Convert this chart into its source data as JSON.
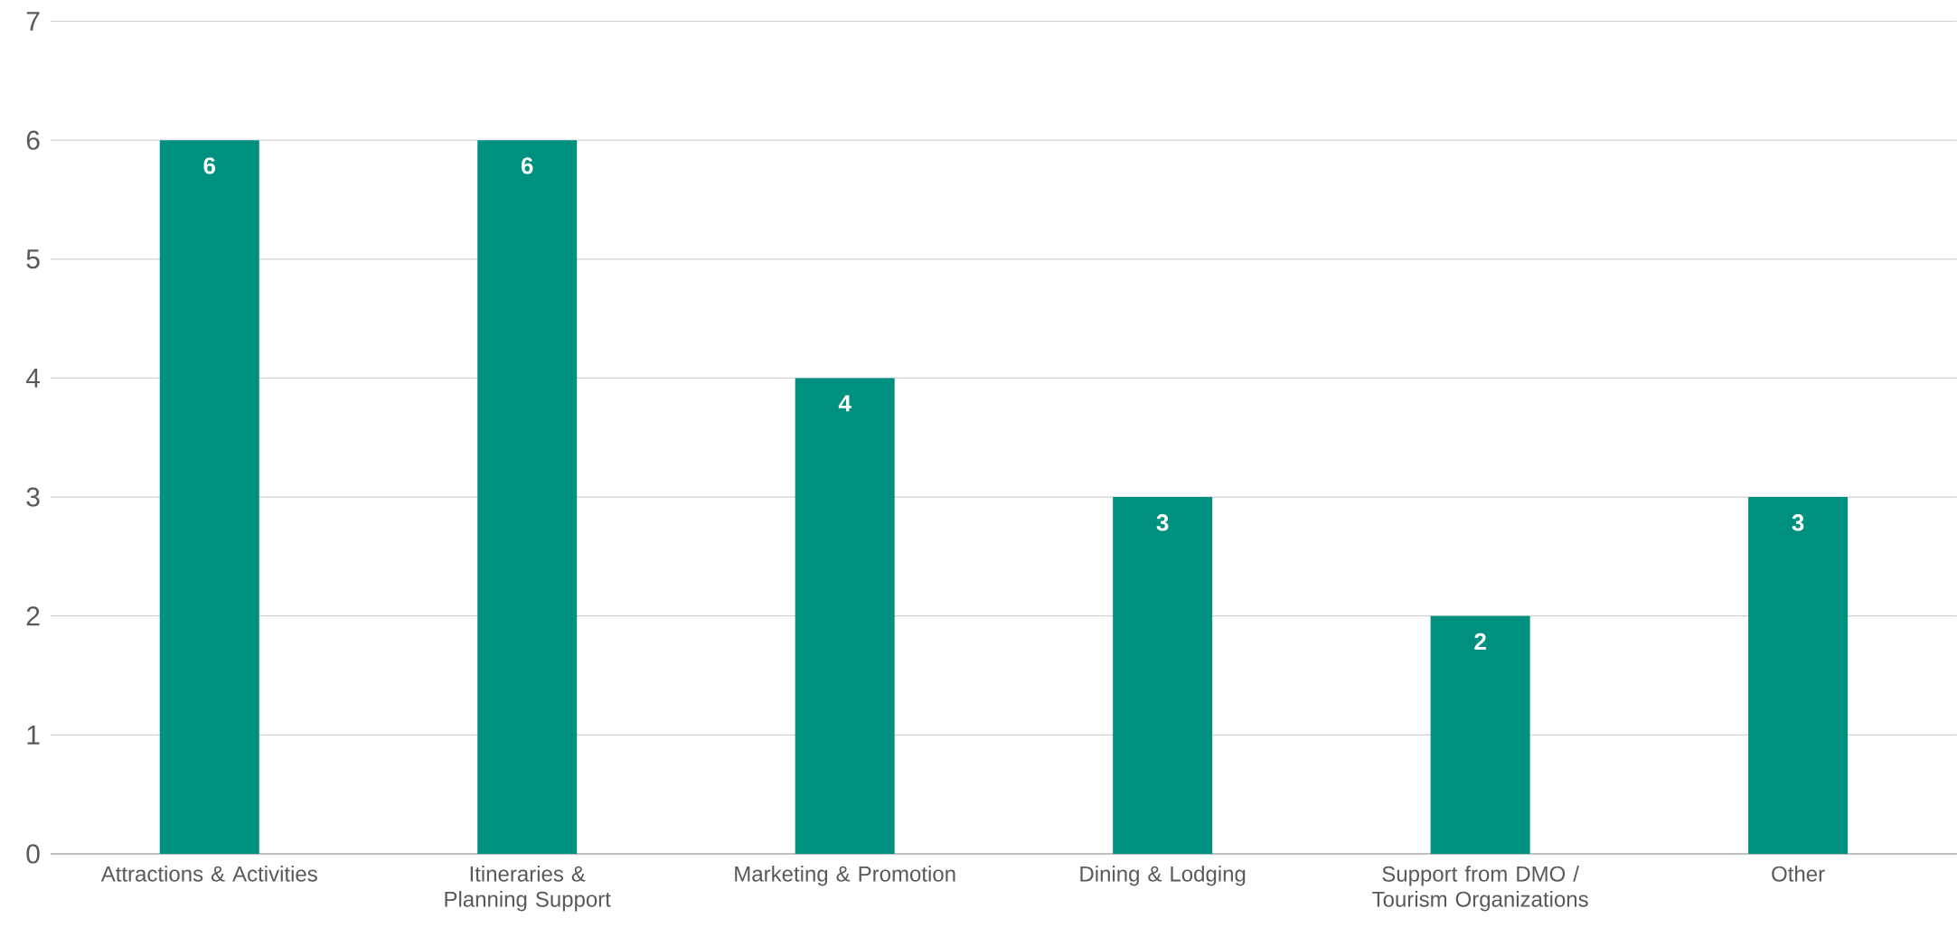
{
  "chart_data": {
    "type": "bar",
    "categories": [
      "Attractions & Activities",
      "Itineraries & Planning Support",
      "Marketing & Promotion",
      "Dining & Lodging",
      "Support from DMO / Tourism Organizations",
      "Other"
    ],
    "values": [
      6,
      6,
      4,
      3,
      2,
      3
    ],
    "color": "#00907f",
    "ylim": [
      0,
      7
    ],
    "yticks": [
      0,
      1,
      2,
      3,
      4,
      5,
      6,
      7
    ],
    "grid": "y",
    "data_labels": true
  }
}
